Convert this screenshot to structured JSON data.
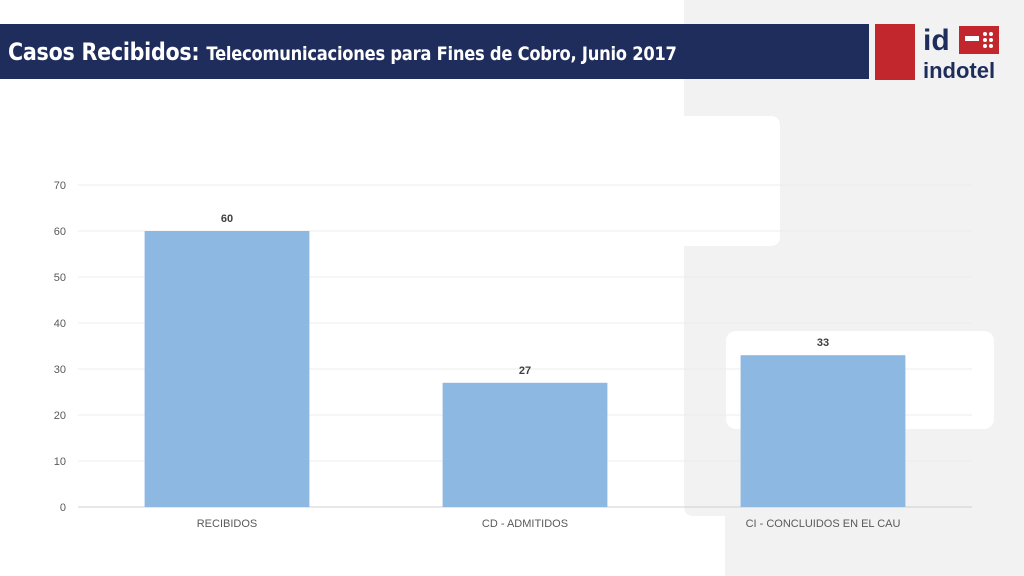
{
  "header": {
    "title_main": "Casos Recibidos:",
    "title_sub": "Telecomunicaciones para Fines de Cobro, Junio 2017"
  },
  "logo": {
    "text_top": "id",
    "text_bottom": "indotel",
    "brand_red": "#c1272d"
  },
  "colors": {
    "title_bar": "#1f2d5c",
    "bar": "#8db8e2",
    "background_shape": "#f2f2f2"
  },
  "chart_data": {
    "type": "bar",
    "categories": [
      "RECIBIDOS",
      "CD - ADMITIDOS",
      "CI - CONCLUIDOS EN EL CAU"
    ],
    "values": [
      60,
      27,
      33
    ],
    "title": "",
    "xlabel": "",
    "ylabel": "",
    "ylim": [
      0,
      70
    ],
    "yticks": [
      0,
      10,
      20,
      30,
      40,
      50,
      60,
      70
    ],
    "grid": true,
    "legend": "none",
    "data_labels": true
  }
}
